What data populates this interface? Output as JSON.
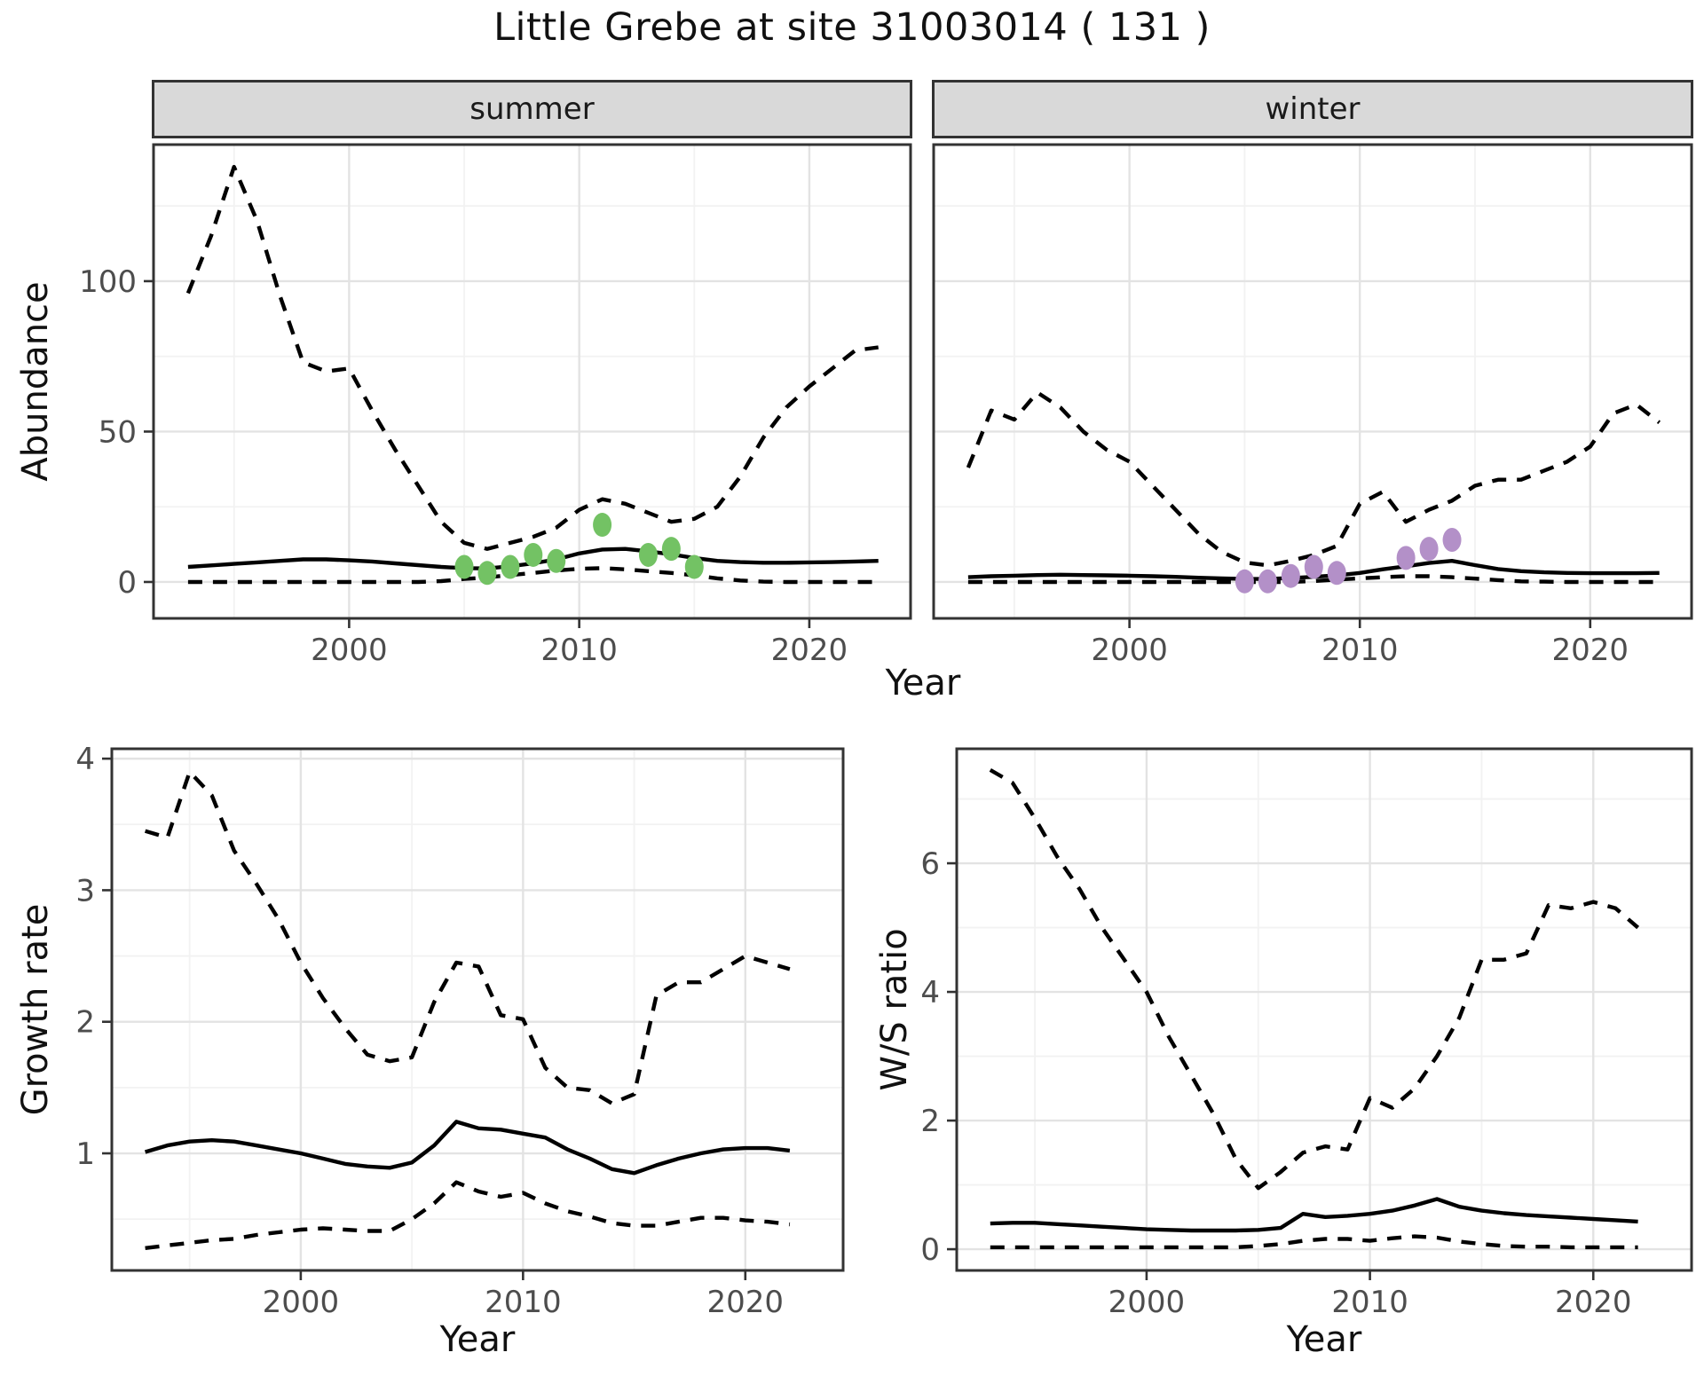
{
  "title": "Little Grebe at site 31003014 ( 131 )",
  "facets": {
    "summer": "summer",
    "winter": "winter"
  },
  "axis_titles": {
    "abundance": "Abundance",
    "year_top": "Year",
    "growth_rate": "Growth rate",
    "ws_ratio": "W/S ratio",
    "year_bottom_left": "Year",
    "year_bottom_right": "Year"
  },
  "colors": {
    "line": "#000000",
    "panel_border": "#333333",
    "tick_mark": "#333333",
    "tick_text": "#4d4d4d",
    "grid_major": "#e3e3e3",
    "grid_minor": "#f2f2f2",
    "strip_bg": "#d9d9d9",
    "summer_point": "#73c264",
    "winter_point": "#b390c8",
    "panel_bg": "#ffffff"
  },
  "chart_data": [
    {
      "id": "summer",
      "type": "line",
      "facet_label": "summer",
      "ylabel": "Abundance",
      "xlabel": "Year",
      "years": [
        1993,
        1994,
        1995,
        1996,
        1997,
        1998,
        1999,
        2000,
        2001,
        2002,
        2003,
        2004,
        2005,
        2006,
        2007,
        2008,
        2009,
        2010,
        2011,
        2012,
        2013,
        2014,
        2015,
        2016,
        2017,
        2018,
        2019,
        2020,
        2021,
        2022,
        2023
      ],
      "series": [
        {
          "name": "upper_ci",
          "style": "dashed",
          "values": [
            96,
            115,
            138,
            120,
            95,
            73,
            70,
            71,
            57,
            44,
            32,
            20,
            13,
            11,
            13,
            15,
            18,
            24,
            27.5,
            26,
            23,
            20,
            21,
            25,
            35,
            48,
            58,
            65,
            71,
            77,
            78
          ]
        },
        {
          "name": "mean",
          "style": "solid",
          "values": [
            5,
            5.5,
            6,
            6.5,
            7,
            7.5,
            7.5,
            7.2,
            6.8,
            6.2,
            5.6,
            5,
            4.6,
            4.5,
            5.2,
            6.2,
            7.5,
            9.5,
            10.8,
            11,
            10.2,
            9.2,
            8,
            7,
            6.6,
            6.4,
            6.4,
            6.5,
            6.6,
            6.8,
            7
          ]
        },
        {
          "name": "lower_ci",
          "style": "dashed",
          "values": [
            0,
            0,
            0,
            0,
            0,
            0,
            0,
            0,
            0,
            0,
            0,
            0.3,
            1,
            1.5,
            2.3,
            3,
            3.8,
            4.4,
            4.6,
            4.2,
            3.6,
            3,
            2.2,
            1.2,
            0.5,
            0.1,
            0,
            0,
            0,
            0,
            0
          ]
        }
      ],
      "points": {
        "name": "observed_counts",
        "color_key": "summer_point",
        "data": [
          [
            2005,
            5
          ],
          [
            2006,
            3
          ],
          [
            2007,
            5
          ],
          [
            2008,
            9
          ],
          [
            2009,
            7
          ],
          [
            2011,
            19
          ],
          [
            2013,
            9
          ],
          [
            2014,
            11
          ],
          [
            2015,
            5
          ]
        ]
      },
      "axes": {
        "xlim": [
          1991.5,
          2024.4
        ],
        "ylim": [
          -12.1,
          145.4
        ],
        "xticks": [
          2000,
          2010,
          2020
        ],
        "xminor": [
          1995,
          2005,
          2015
        ],
        "yticks": [
          0,
          50,
          100
        ],
        "yminor": [
          25,
          75,
          125
        ],
        "show_ylabels": true
      }
    },
    {
      "id": "winter",
      "type": "line",
      "facet_label": "winter",
      "ylabel": "Abundance",
      "xlabel": "Year",
      "years": [
        1993,
        1994,
        1995,
        1996,
        1997,
        1998,
        1999,
        2000,
        2001,
        2002,
        2003,
        2004,
        2005,
        2006,
        2007,
        2008,
        2009,
        2010,
        2011,
        2012,
        2013,
        2014,
        2015,
        2016,
        2017,
        2018,
        2019,
        2020,
        2021,
        2022,
        2023
      ],
      "series": [
        {
          "name": "upper_ci",
          "style": "dashed",
          "values": [
            38,
            57,
            54,
            63,
            58,
            50,
            44,
            40,
            32,
            24,
            16,
            10,
            6.5,
            5.5,
            7,
            9,
            12,
            26,
            30,
            20,
            24,
            27,
            32,
            34,
            34,
            37,
            40,
            45,
            56,
            59,
            53
          ]
        },
        {
          "name": "mean",
          "style": "solid",
          "values": [
            1.6,
            1.9,
            2.1,
            2.3,
            2.4,
            2.3,
            2.2,
            2.1,
            1.9,
            1.7,
            1.4,
            1.2,
            1,
            1,
            1.3,
            1.7,
            2.2,
            3,
            4.2,
            5.2,
            6.3,
            7,
            5.6,
            4.3,
            3.6,
            3.2,
            3,
            2.9,
            2.9,
            2.9,
            3
          ]
        },
        {
          "name": "lower_ci",
          "style": "dashed",
          "values": [
            0,
            0,
            0,
            0,
            0,
            0,
            0,
            0,
            0,
            0,
            0,
            0,
            0,
            0,
            0,
            0.3,
            0.8,
            1.2,
            1.6,
            1.9,
            1.9,
            1.6,
            1.1,
            0.6,
            0.2,
            0.1,
            0,
            0,
            0,
            0,
            0
          ]
        }
      ],
      "points": {
        "name": "observed_counts",
        "color_key": "winter_point",
        "data": [
          [
            2005,
            0.2
          ],
          [
            2006,
            0.2
          ],
          [
            2007,
            2
          ],
          [
            2008,
            5
          ],
          [
            2009,
            3
          ],
          [
            2012,
            8
          ],
          [
            2013,
            11
          ],
          [
            2014,
            14
          ]
        ]
      },
      "axes": {
        "xlim": [
          1991.5,
          2024.4
        ],
        "ylim": [
          -12.1,
          145.4
        ],
        "xticks": [
          2000,
          2010,
          2020
        ],
        "xminor": [
          1995,
          2005,
          2015
        ],
        "yticks": [
          0,
          50,
          100
        ],
        "yminor": [
          25,
          75,
          125
        ],
        "show_ylabels": false
      }
    },
    {
      "id": "growth_rate",
      "type": "line",
      "facet_label": "",
      "ylabel": "Growth rate",
      "xlabel": "Year",
      "years": [
        1993,
        1994,
        1995,
        1996,
        1997,
        1998,
        1999,
        2000,
        2001,
        2002,
        2003,
        2004,
        2005,
        2006,
        2007,
        2008,
        2009,
        2010,
        2011,
        2012,
        2013,
        2014,
        2015,
        2016,
        2017,
        2018,
        2019,
        2020,
        2021,
        2022
      ],
      "series": [
        {
          "name": "upper_ci",
          "style": "dashed",
          "values": [
            3.45,
            3.4,
            3.9,
            3.72,
            3.3,
            3.05,
            2.78,
            2.45,
            2.18,
            1.95,
            1.75,
            1.7,
            1.73,
            2.15,
            2.45,
            2.42,
            2.05,
            2.02,
            1.65,
            1.5,
            1.48,
            1.38,
            1.45,
            2.2,
            2.3,
            2.3,
            2.4,
            2.5,
            2.45,
            2.4
          ]
        },
        {
          "name": "mean",
          "style": "solid",
          "values": [
            1.01,
            1.06,
            1.09,
            1.1,
            1.09,
            1.06,
            1.03,
            1.0,
            0.96,
            0.92,
            0.9,
            0.89,
            0.93,
            1.06,
            1.24,
            1.19,
            1.18,
            1.15,
            1.12,
            1.03,
            0.96,
            0.88,
            0.85,
            0.91,
            0.96,
            1.0,
            1.03,
            1.04,
            1.04,
            1.02
          ]
        },
        {
          "name": "lower_ci",
          "style": "dashed",
          "values": [
            0.28,
            0.3,
            0.32,
            0.34,
            0.35,
            0.38,
            0.4,
            0.42,
            0.43,
            0.42,
            0.41,
            0.41,
            0.5,
            0.62,
            0.78,
            0.71,
            0.67,
            0.7,
            0.62,
            0.56,
            0.52,
            0.47,
            0.45,
            0.45,
            0.48,
            0.51,
            0.51,
            0.49,
            0.48,
            0.46
          ]
        }
      ],
      "points": null,
      "axes": {
        "xlim": [
          1991.5,
          2024.4
        ],
        "ylim": [
          0.11,
          4.075
        ],
        "xticks": [
          2000,
          2010,
          2020
        ],
        "xminor": [
          1995,
          2005,
          2015
        ],
        "yticks": [
          1,
          2,
          3,
          4
        ],
        "yminor": [
          0.5,
          1.5,
          2.5,
          3.5
        ],
        "show_ylabels": true
      }
    },
    {
      "id": "ws_ratio",
      "type": "line",
      "facet_label": "",
      "ylabel": "W/S ratio",
      "xlabel": "Year",
      "years": [
        1993,
        1994,
        1995,
        1996,
        1997,
        1998,
        1999,
        2000,
        2001,
        2002,
        2003,
        2004,
        2005,
        2006,
        2007,
        2008,
        2009,
        2010,
        2011,
        2012,
        2013,
        2014,
        2015,
        2016,
        2017,
        2018,
        2019,
        2020,
        2021,
        2022
      ],
      "series": [
        {
          "name": "upper_ci",
          "style": "dashed",
          "values": [
            7.45,
            7.25,
            6.7,
            6.1,
            5.6,
            5.0,
            4.5,
            4.0,
            3.3,
            2.7,
            2.1,
            1.4,
            0.95,
            1.2,
            1.5,
            1.6,
            1.55,
            2.35,
            2.2,
            2.5,
            3.0,
            3.6,
            4.5,
            4.5,
            4.6,
            5.35,
            5.3,
            5.4,
            5.3,
            5.0
          ]
        },
        {
          "name": "mean",
          "style": "solid",
          "values": [
            0.4,
            0.41,
            0.41,
            0.39,
            0.37,
            0.35,
            0.33,
            0.31,
            0.3,
            0.29,
            0.29,
            0.29,
            0.3,
            0.33,
            0.55,
            0.5,
            0.52,
            0.55,
            0.6,
            0.68,
            0.78,
            0.66,
            0.6,
            0.56,
            0.53,
            0.51,
            0.49,
            0.47,
            0.45,
            0.43
          ]
        },
        {
          "name": "lower_ci",
          "style": "dashed",
          "values": [
            0.03,
            0.03,
            0.03,
            0.03,
            0.03,
            0.03,
            0.03,
            0.03,
            0.03,
            0.03,
            0.03,
            0.03,
            0.05,
            0.08,
            0.13,
            0.16,
            0.16,
            0.13,
            0.17,
            0.2,
            0.18,
            0.12,
            0.08,
            0.05,
            0.04,
            0.04,
            0.03,
            0.03,
            0.03,
            0.03
          ]
        }
      ],
      "points": null,
      "axes": {
        "xlim": [
          1991.5,
          2024.4
        ],
        "ylim": [
          -0.33,
          7.78
        ],
        "xticks": [
          2000,
          2010,
          2020
        ],
        "xminor": [
          1995,
          2005,
          2015
        ],
        "yticks": [
          0,
          2,
          4,
          6
        ],
        "yminor": [
          1,
          3,
          5,
          7
        ],
        "show_ylabels": true
      }
    }
  ],
  "layout_note": "grid: on (major+minor), legend: none, ci_linetype: dashed, mean_linetype: solid"
}
